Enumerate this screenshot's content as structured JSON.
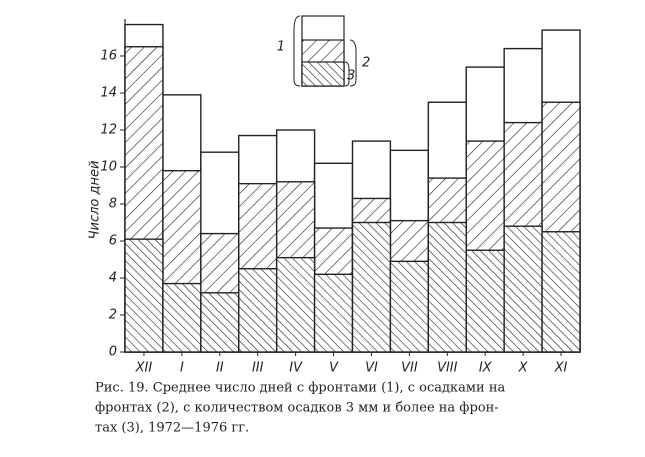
{
  "chart_data": {
    "type": "bar",
    "overlay": true,
    "y_label": "Число дней",
    "caption": [
      "Рис. 19. Среднее число дней с фронтами (1), с осадками на",
      "фронтах (2), с количеством осадков 3 мм и более на фрон-",
      "тах (3), 1972—1976 гг."
    ],
    "categories": [
      "XII",
      "I",
      "II",
      "III",
      "IV",
      "V",
      "VI",
      "VII",
      "VIII",
      "IX",
      "X",
      "XI"
    ],
    "series": [
      {
        "name": "1",
        "color": "#222",
        "hatch": "none",
        "values": [
          17.7,
          13.9,
          10.8,
          11.7,
          12.0,
          10.2,
          11.4,
          10.9,
          13.5,
          15.4,
          16.4,
          17.4
        ]
      },
      {
        "name": "2",
        "color": "#222",
        "hatch": "/",
        "values": [
          16.5,
          9.8,
          6.4,
          9.1,
          9.2,
          6.7,
          8.3,
          7.1,
          9.4,
          11.4,
          12.4,
          13.5
        ]
      },
      {
        "name": "3",
        "color": "#222",
        "hatch": "\\",
        "values": [
          6.1,
          3.7,
          3.2,
          4.5,
          5.1,
          4.2,
          7.0,
          4.9,
          7.0,
          5.5,
          6.8,
          6.5
        ]
      }
    ],
    "ylim": [
      0,
      18
    ],
    "yticks": [
      0,
      2,
      4,
      6,
      8,
      10,
      12,
      14,
      16
    ]
  }
}
